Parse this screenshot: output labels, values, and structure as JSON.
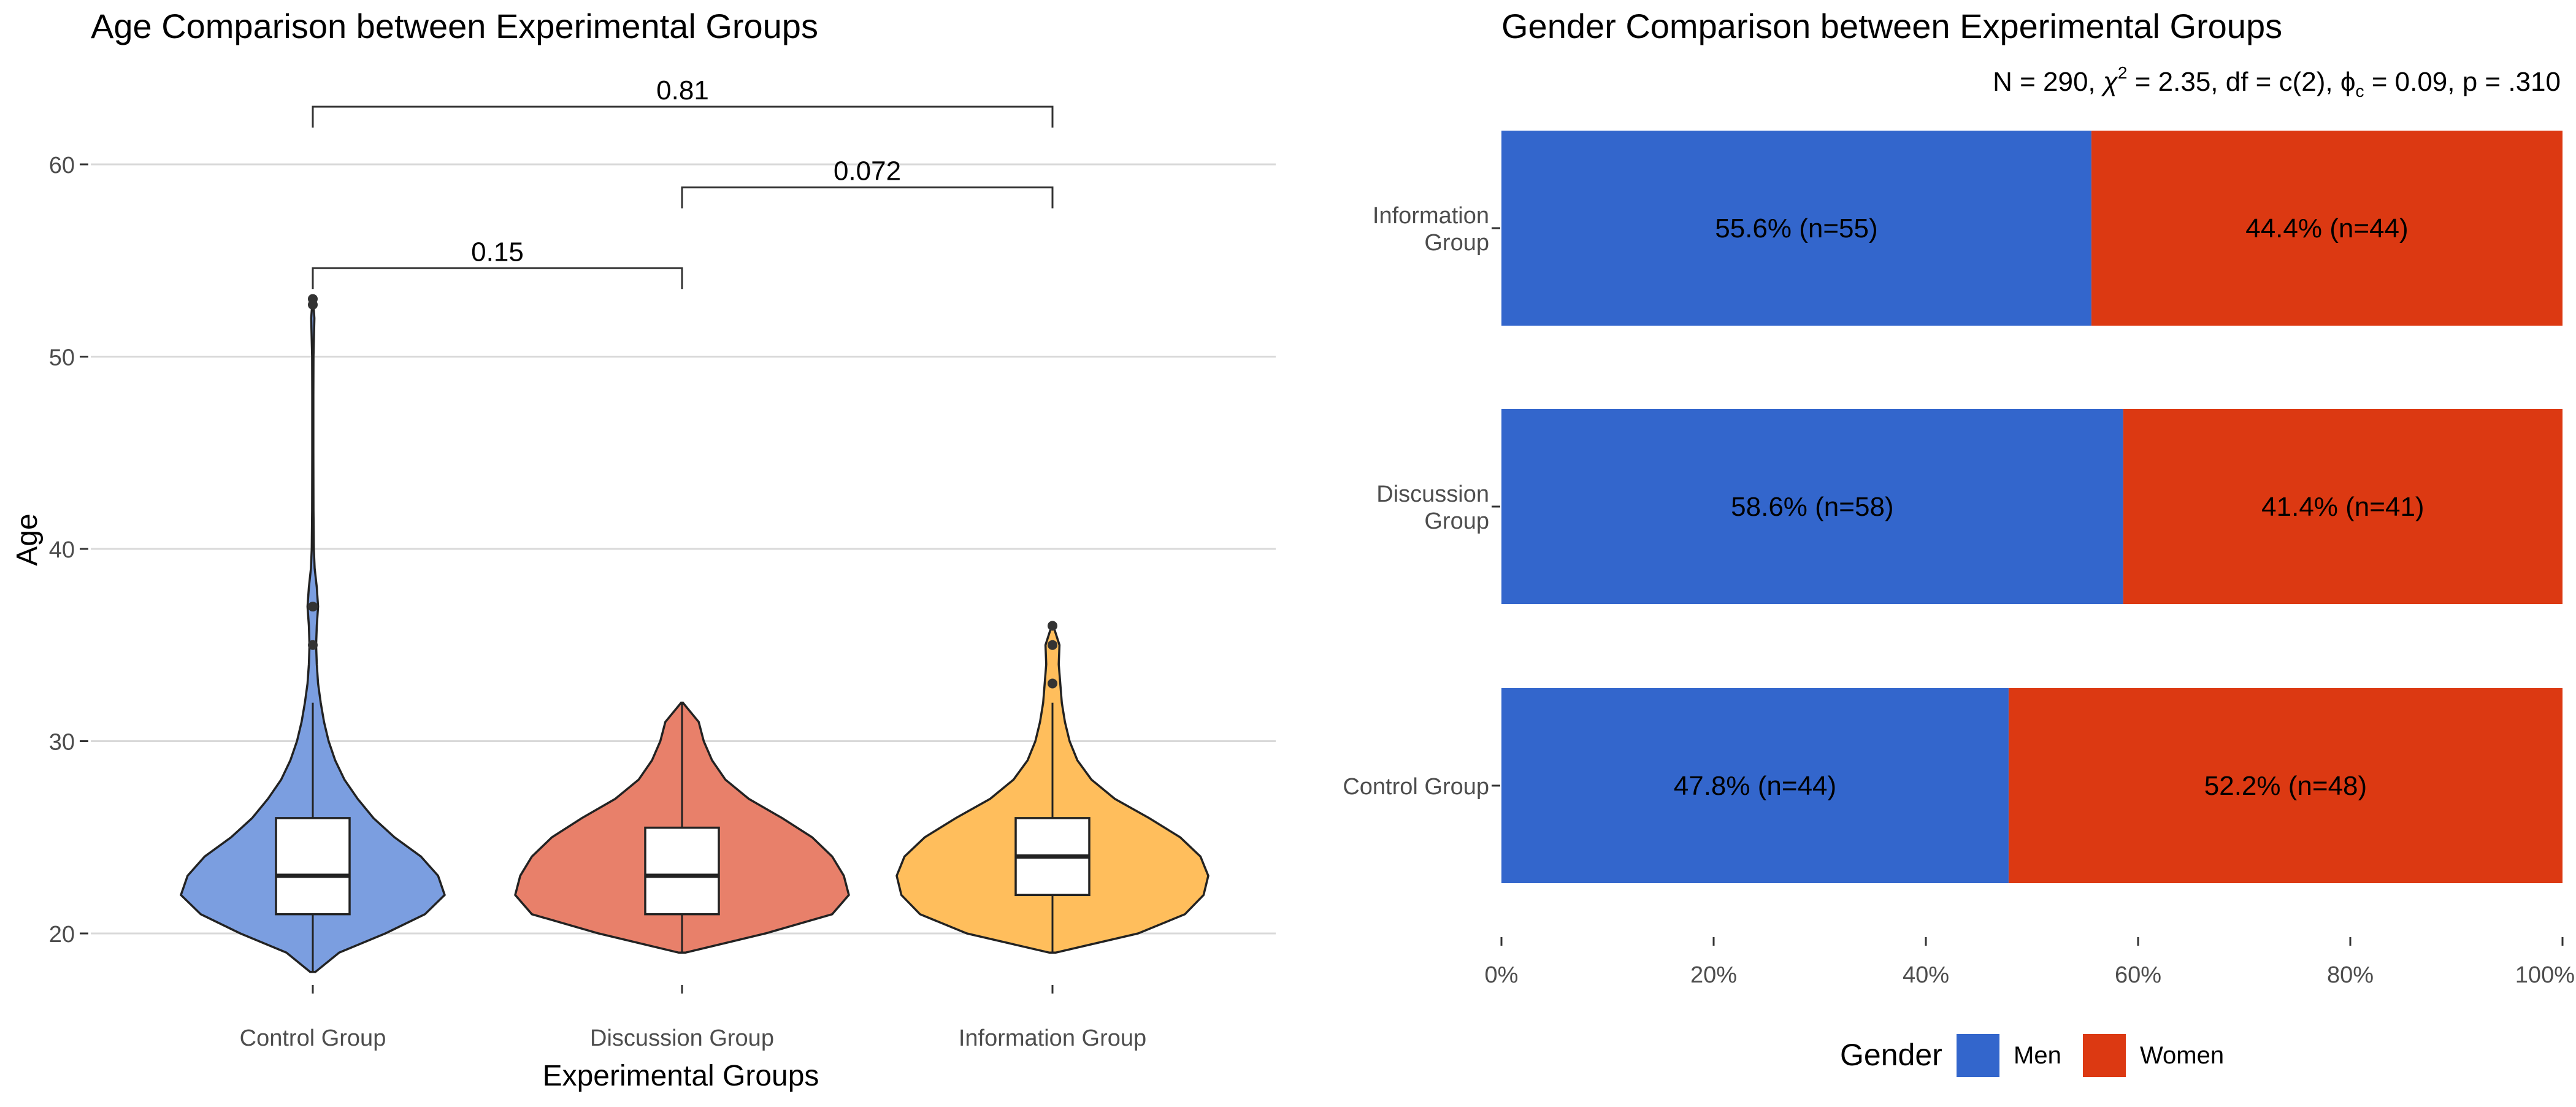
{
  "chart_data": [
    {
      "type": "violin",
      "title": "Age Comparison between Experimental Groups",
      "xlabel": "Experimental Groups",
      "ylabel": "Age",
      "ylim": [
        17,
        63
      ],
      "yticks": [
        20,
        30,
        40,
        50,
        60
      ],
      "grid": true,
      "categories": [
        "Control Group",
        "Discussion Group",
        "Information Group"
      ],
      "colors": [
        "#7B9EE0",
        "#E8806A",
        "#FFBE5C"
      ],
      "boxes": [
        {
          "min": 18,
          "q1": 21,
          "median": 23,
          "q3": 26,
          "max": 32
        },
        {
          "min": 19,
          "q1": 21,
          "median": 23,
          "q3": 25.5,
          "max": 32
        },
        {
          "min": 19,
          "q1": 22,
          "median": 24,
          "q3": 26,
          "max": 32
        }
      ],
      "outliers": [
        [
          35,
          37,
          52.7,
          53
        ],
        [],
        [
          33,
          35,
          36
        ]
      ],
      "violin_profiles": [
        {
          "min": 18,
          "max": 53,
          "density": [
            [
              18,
              0.02
            ],
            [
              19,
              0.2
            ],
            [
              20,
              0.55
            ],
            [
              21,
              0.85
            ],
            [
              22,
              1.0
            ],
            [
              23,
              0.95
            ],
            [
              24,
              0.82
            ],
            [
              25,
              0.62
            ],
            [
              26,
              0.46
            ],
            [
              27,
              0.34
            ],
            [
              28,
              0.24
            ],
            [
              29,
              0.17
            ],
            [
              30,
              0.12
            ],
            [
              31,
              0.085
            ],
            [
              32,
              0.06
            ],
            [
              33,
              0.04
            ],
            [
              34,
              0.03
            ],
            [
              35,
              0.025
            ],
            [
              36,
              0.03
            ],
            [
              37,
              0.04
            ],
            [
              38,
              0.03
            ],
            [
              39,
              0.014
            ],
            [
              40,
              0.008
            ],
            [
              42,
              0.005
            ],
            [
              45,
              0.004
            ],
            [
              48,
              0.004
            ],
            [
              50,
              0.005
            ],
            [
              52,
              0.012
            ],
            [
              53,
              0.002
            ]
          ]
        },
        {
          "min": 19,
          "max": 32,
          "density": [
            [
              19,
              0.02
            ],
            [
              20,
              0.5
            ],
            [
              21,
              0.9
            ],
            [
              22,
              1.0
            ],
            [
              23,
              0.97
            ],
            [
              24,
              0.9
            ],
            [
              25,
              0.78
            ],
            [
              26,
              0.6
            ],
            [
              27,
              0.4
            ],
            [
              28,
              0.26
            ],
            [
              29,
              0.18
            ],
            [
              30,
              0.13
            ],
            [
              31,
              0.1
            ],
            [
              32,
              0.005
            ]
          ]
        },
        {
          "min": 19,
          "max": 36,
          "density": [
            [
              19,
              0.02
            ],
            [
              20,
              0.55
            ],
            [
              21,
              0.85
            ],
            [
              22,
              0.97
            ],
            [
              23,
              1.0
            ],
            [
              24,
              0.95
            ],
            [
              25,
              0.82
            ],
            [
              26,
              0.62
            ],
            [
              27,
              0.4
            ],
            [
              28,
              0.25
            ],
            [
              29,
              0.16
            ],
            [
              30,
              0.11
            ],
            [
              31,
              0.08
            ],
            [
              32,
              0.06
            ],
            [
              33,
              0.05
            ],
            [
              34,
              0.04
            ],
            [
              35,
              0.045
            ],
            [
              36,
              0.005
            ]
          ]
        }
      ],
      "comparisons": [
        {
          "from": 0,
          "to": 2,
          "y": 63,
          "label": "0.81"
        },
        {
          "from": 1,
          "to": 2,
          "y": 58.8,
          "label": "0.072"
        },
        {
          "from": 0,
          "to": 1,
          "y": 54.6,
          "label": "0.15"
        }
      ]
    },
    {
      "type": "bar",
      "orientation": "horizontal",
      "stacked": "percent",
      "title": "Gender Comparison between Experimental Groups",
      "subtitle": {
        "n": "N = 290,",
        "chi_sym": "χ",
        "chi_sup": "2",
        "chi_val": "= 2.35,",
        "df": "df = c(2),",
        "phi_sym": "ϕ",
        "phi_sub": "c",
        "phi_val": "= 0.09,",
        "p": "p = .310"
      },
      "categories": [
        "Information Group",
        "Discussion Group",
        "Control Group"
      ],
      "category_lines": [
        [
          "Information",
          "Group"
        ],
        [
          "Discussion",
          "Group"
        ],
        [
          "Control Group"
        ]
      ],
      "series": [
        {
          "name": "Men",
          "color": "#3366CC",
          "values": [
            55.6,
            58.6,
            47.8
          ],
          "labels": [
            "55.6% (n=55)",
            "58.6% (n=58)",
            "47.8% (n=44)"
          ]
        },
        {
          "name": "Women",
          "color": "#DC3912",
          "values": [
            44.4,
            41.4,
            52.2
          ],
          "labels": [
            "44.4% (n=44)",
            "41.4% (n=41)",
            "52.2% (n=48)"
          ]
        }
      ],
      "xlim": [
        0,
        100
      ],
      "xticks": [
        0,
        20,
        40,
        60,
        80,
        100
      ],
      "xtick_labels": [
        "0%",
        "20%",
        "40%",
        "60%",
        "80%",
        "100%"
      ],
      "grid": false,
      "legend": {
        "title": "Gender",
        "placement": "bottom"
      }
    }
  ]
}
